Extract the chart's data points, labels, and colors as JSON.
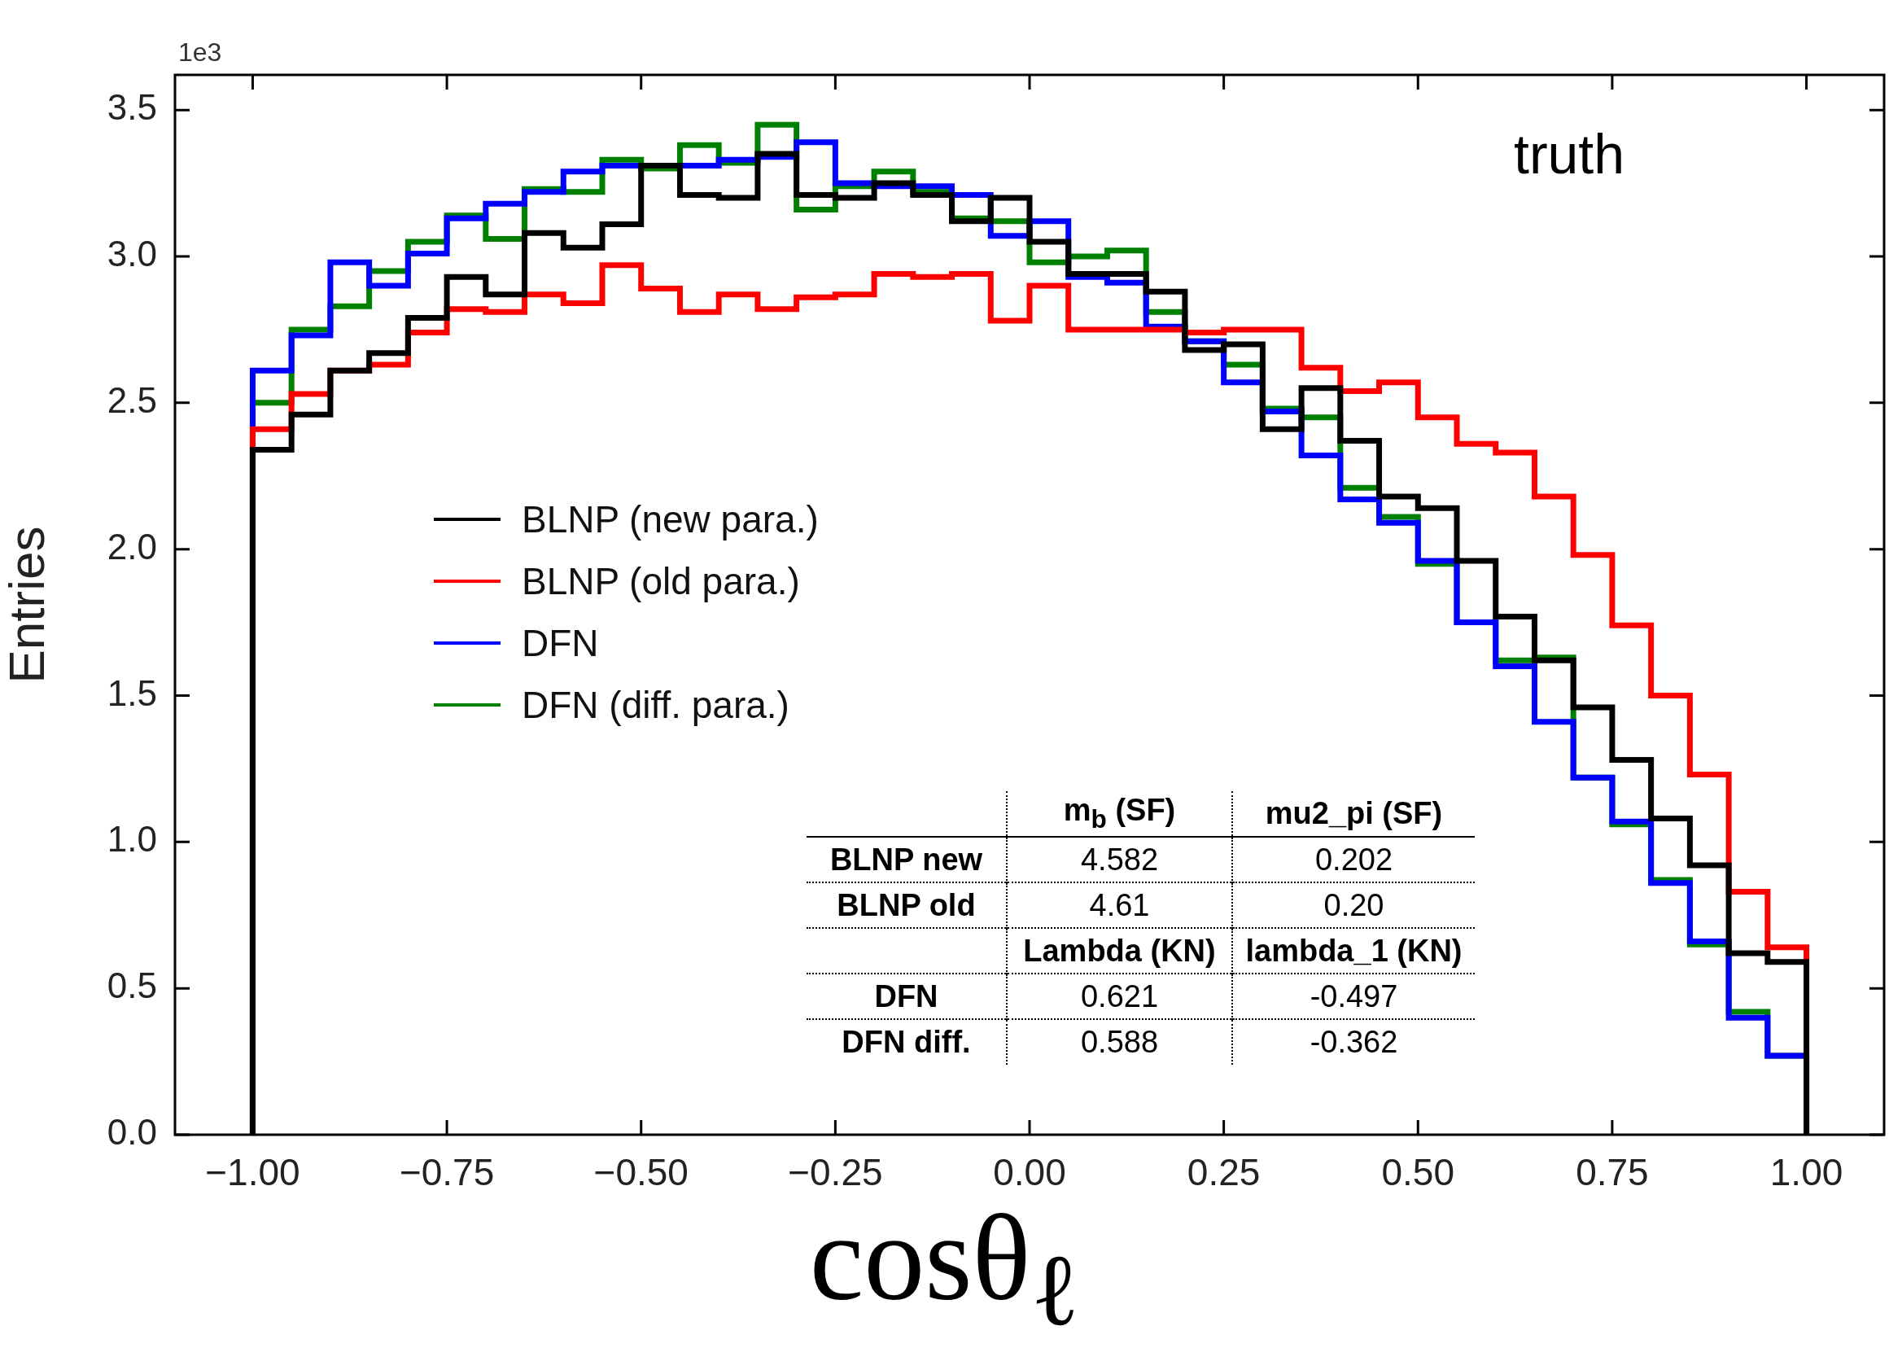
{
  "chart_data": {
    "type": "histogram",
    "xlabel": "cosθ$_{ℓ}$",
    "ylabel": "Entries",
    "bins": [
      -1,
      -0.95,
      -0.9,
      -0.85,
      -0.8,
      -0.75,
      -0.7,
      -0.65,
      -0.6,
      -0.55,
      -0.5,
      -0.45,
      -0.4,
      -0.35,
      -0.3,
      -0.25,
      -0.2,
      -0.15,
      -0.1,
      -0.05,
      0,
      0.05,
      0.1,
      0.15,
      0.2,
      0.25,
      0.3,
      0.35,
      0.4,
      0.45,
      0.5,
      0.55,
      0.6,
      0.65,
      0.7,
      0.75,
      0.8,
      0.85,
      0.9,
      0.95,
      1
    ],
    "series": [
      {
        "name": "BLNP (new para.)",
        "color": "#000000",
        "values": [
          2.34,
          2.46,
          2.61,
          2.67,
          2.79,
          2.93,
          2.87,
          3.08,
          3.03,
          3.11,
          3.31,
          3.21,
          3.2,
          3.35,
          3.21,
          3.2,
          3.25,
          3.21,
          3.12,
          3.2,
          3.05,
          2.94,
          2.94,
          2.88,
          2.68,
          2.7,
          2.41,
          2.55,
          2.37,
          2.18,
          2.14,
          1.96,
          1.77,
          1.62,
          1.46,
          1.28,
          1.08,
          0.92,
          0.62,
          0.59
        ]
      },
      {
        "name": "BLNP (old para.)",
        "color": "#ff0000",
        "values": [
          2.41,
          2.53,
          2.61,
          2.63,
          2.74,
          2.82,
          2.81,
          2.87,
          2.84,
          2.97,
          2.89,
          2.81,
          2.87,
          2.82,
          2.86,
          2.87,
          2.94,
          2.93,
          2.94,
          2.78,
          2.9,
          2.75,
          2.75,
          2.75,
          2.74,
          2.75,
          2.75,
          2.62,
          2.54,
          2.57,
          2.45,
          2.36,
          2.33,
          2.18,
          1.98,
          1.74,
          1.5,
          1.23,
          0.83,
          0.64
        ]
      },
      {
        "name": "DFN",
        "color": "#0000ff",
        "values": [
          2.61,
          2.73,
          2.98,
          2.9,
          3.01,
          3.13,
          3.18,
          3.22,
          3.29,
          3.31,
          3.31,
          3.31,
          3.33,
          3.34,
          3.39,
          3.25,
          3.24,
          3.24,
          3.21,
          3.07,
          3.12,
          2.93,
          2.91,
          2.76,
          2.71,
          2.57,
          2.47,
          2.32,
          2.17,
          2.09,
          1.96,
          1.75,
          1.6,
          1.41,
          1.22,
          1.07,
          0.86,
          0.66,
          0.4,
          0.27
        ]
      },
      {
        "name": "DFN (diff. para.)",
        "color": "#008000",
        "values": [
          2.5,
          2.75,
          2.83,
          2.95,
          3.05,
          3.14,
          3.06,
          3.23,
          3.22,
          3.33,
          3.3,
          3.38,
          3.32,
          3.45,
          3.16,
          3.24,
          3.29,
          3.22,
          3.13,
          3.12,
          2.98,
          3.0,
          3.02,
          2.81,
          2.71,
          2.63,
          2.48,
          2.45,
          2.21,
          2.11,
          1.95,
          1.75,
          1.62,
          1.63,
          1.22,
          1.06,
          0.87,
          0.65,
          0.42,
          0.27
        ]
      }
    ],
    "xlim": [
      -1.1,
      1.1
    ],
    "ylim": [
      0,
      3.62
    ],
    "xticks": [
      {
        "value": -1,
        "label": "−1.00"
      },
      {
        "value": -0.75,
        "label": "−0.75"
      },
      {
        "value": -0.5,
        "label": "−0.50"
      },
      {
        "value": -0.25,
        "label": "−0.25"
      },
      {
        "value": 0,
        "label": "0.00"
      },
      {
        "value": 0.25,
        "label": "0.25"
      },
      {
        "value": 0.5,
        "label": "0.50"
      },
      {
        "value": 0.75,
        "label": "0.75"
      },
      {
        "value": 1,
        "label": "1.00"
      }
    ],
    "yticks": [
      {
        "value": 0,
        "label": "0.0"
      },
      {
        "value": 0.5,
        "label": "0.5"
      },
      {
        "value": 1,
        "label": "1.0"
      },
      {
        "value": 1.5,
        "label": "1.5"
      },
      {
        "value": 2,
        "label": "2.0"
      },
      {
        "value": 2.5,
        "label": "2.5"
      },
      {
        "value": 3,
        "label": "3.0"
      },
      {
        "value": 3.5,
        "label": "3.5"
      }
    ],
    "grid": false,
    "legend": "left",
    "annotations": [
      "1e3",
      "truth",
      "m$_{b}$ (SF)",
      "mu2_pi (SF)",
      "BLNP new",
      "4.582",
      "0.202",
      "BLNP old",
      "4.61",
      "0.20",
      "Lambda (KN)",
      "lambda_1 (KN)",
      "DFN",
      "0.621",
      "-0.497",
      "DFN diff.",
      "0.588",
      "-0.362"
    ]
  }
}
